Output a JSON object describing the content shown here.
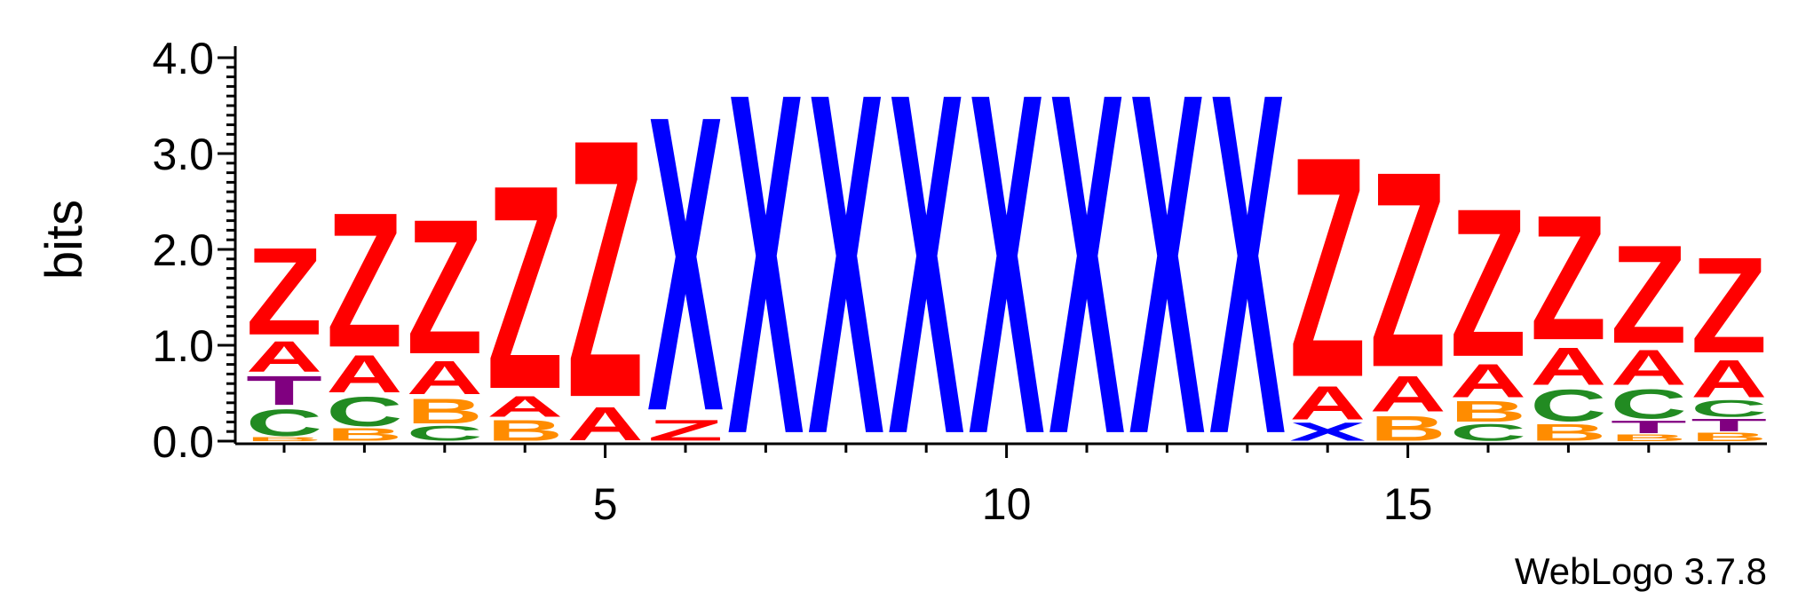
{
  "chart_data": {
    "type": "sequence-logo",
    "ylabel": "bits",
    "ylim": [
      0,
      4.1
    ],
    "yticks": [
      "0.0",
      "1.0",
      "2.0",
      "3.0",
      "4.0"
    ],
    "ytick_values": [
      0,
      1,
      2,
      3,
      4
    ],
    "xticks": [
      "5",
      "10",
      "15"
    ],
    "xtick_values": [
      5,
      10,
      15
    ],
    "positions": [
      1,
      2,
      3,
      4,
      5,
      6,
      7,
      8,
      9,
      10,
      11,
      12,
      13,
      14,
      15,
      16,
      17,
      18,
      19
    ],
    "colors": {
      "Z": "#ff0000",
      "A": "#ff0000",
      "X": "#0000ff",
      "C": "#228b22",
      "B": "#ff8c00",
      "T": "#800080"
    },
    "columns": [
      {
        "pos": 1,
        "letters": [
          {
            "c": "B",
            "h": 0.05
          },
          {
            "c": "C",
            "h": 0.32
          },
          {
            "c": "T",
            "h": 0.35
          },
          {
            "c": "A",
            "h": 0.37
          },
          {
            "c": "Z",
            "h": 1.05
          }
        ]
      },
      {
        "pos": 2,
        "letters": [
          {
            "c": "B",
            "h": 0.15
          },
          {
            "c": "C",
            "h": 0.35
          },
          {
            "c": "A",
            "h": 0.45
          },
          {
            "c": "Z",
            "h": 1.62
          }
        ]
      },
      {
        "pos": 3,
        "letters": [
          {
            "c": "C",
            "h": 0.18
          },
          {
            "c": "B",
            "h": 0.3
          },
          {
            "c": "A",
            "h": 0.4
          },
          {
            "c": "Z",
            "h": 1.62
          }
        ]
      },
      {
        "pos": 4,
        "letters": [
          {
            "c": "B",
            "h": 0.25
          },
          {
            "c": "A",
            "h": 0.25
          },
          {
            "c": "Z",
            "h": 2.45
          }
        ]
      },
      {
        "pos": 5,
        "letters": [
          {
            "c": "A",
            "h": 0.4
          },
          {
            "c": "Z",
            "h": 3.1
          }
        ]
      },
      {
        "pos": 6,
        "letters": [
          {
            "c": "Z",
            "h": 0.25
          },
          {
            "c": "X",
            "h": 3.55
          }
        ]
      },
      {
        "pos": 7,
        "letters": [
          {
            "c": "X",
            "h": 4.1
          }
        ]
      },
      {
        "pos": 8,
        "letters": [
          {
            "c": "X",
            "h": 4.1
          }
        ]
      },
      {
        "pos": 9,
        "letters": [
          {
            "c": "X",
            "h": 4.1
          }
        ]
      },
      {
        "pos": 10,
        "letters": [
          {
            "c": "X",
            "h": 4.1
          }
        ]
      },
      {
        "pos": 11,
        "letters": [
          {
            "c": "X",
            "h": 4.1
          }
        ]
      },
      {
        "pos": 12,
        "letters": [
          {
            "c": "X",
            "h": 4.1
          }
        ]
      },
      {
        "pos": 13,
        "letters": [
          {
            "c": "X",
            "h": 4.1
          }
        ]
      },
      {
        "pos": 14,
        "letters": [
          {
            "c": "X",
            "h": 0.22
          },
          {
            "c": "A",
            "h": 0.4
          },
          {
            "c": "Z",
            "h": 2.65
          }
        ]
      },
      {
        "pos": 15,
        "letters": [
          {
            "c": "B",
            "h": 0.3
          },
          {
            "c": "A",
            "h": 0.43
          },
          {
            "c": "Z",
            "h": 2.35
          }
        ]
      },
      {
        "pos": 16,
        "letters": [
          {
            "c": "C",
            "h": 0.2
          },
          {
            "c": "B",
            "h": 0.25
          },
          {
            "c": "A",
            "h": 0.4
          },
          {
            "c": "Z",
            "h": 1.78
          }
        ]
      },
      {
        "pos": 17,
        "letters": [
          {
            "c": "B",
            "h": 0.2
          },
          {
            "c": "C",
            "h": 0.38
          },
          {
            "c": "A",
            "h": 0.45
          },
          {
            "c": "Z",
            "h": 1.5
          }
        ]
      },
      {
        "pos": 18,
        "letters": [
          {
            "c": "B",
            "h": 0.08
          },
          {
            "c": "T",
            "h": 0.15
          },
          {
            "c": "C",
            "h": 0.35
          },
          {
            "c": "A",
            "h": 0.42
          },
          {
            "c": "Z",
            "h": 1.18
          }
        ]
      },
      {
        "pos": 19,
        "letters": [
          {
            "c": "B",
            "h": 0.1
          },
          {
            "c": "T",
            "h": 0.15
          },
          {
            "c": "C",
            "h": 0.2
          },
          {
            "c": "A",
            "h": 0.45
          },
          {
            "c": "Z",
            "h": 1.15
          }
        ]
      }
    ]
  },
  "footer": {
    "credit": "WebLogo 3.7.8"
  }
}
